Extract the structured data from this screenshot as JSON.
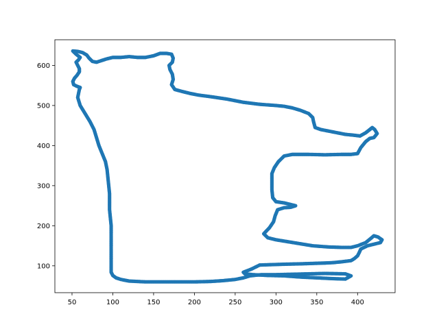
{
  "chart_data": {
    "type": "scatter",
    "title": "",
    "xlabel": "",
    "ylabel": "",
    "xlim": [
      29,
      446
    ],
    "ylim": [
      33,
      664
    ],
    "xticks": [
      50,
      100,
      150,
      200,
      250,
      300,
      350,
      400
    ],
    "yticks": [
      100,
      200,
      300,
      400,
      500,
      600
    ],
    "grid": false,
    "legend": "none",
    "color": "#1f77b4",
    "series": [
      {
        "points": [
          [
            51,
            636
          ],
          [
            57,
            635
          ],
          [
            63,
            632
          ],
          [
            68,
            626
          ],
          [
            71,
            618
          ],
          [
            75,
            610
          ],
          [
            80,
            608
          ],
          [
            86,
            612
          ],
          [
            92,
            616
          ],
          [
            100,
            620
          ],
          [
            110,
            620
          ],
          [
            120,
            622
          ],
          [
            130,
            620
          ],
          [
            140,
            620
          ],
          [
            150,
            624
          ],
          [
            158,
            630
          ],
          [
            166,
            630
          ],
          [
            172,
            628
          ],
          [
            174,
            618
          ],
          [
            173,
            608
          ],
          [
            169,
            600
          ],
          [
            170,
            590
          ],
          [
            173,
            578
          ],
          [
            174,
            565
          ],
          [
            172,
            552
          ],
          [
            176,
            540
          ],
          [
            185,
            535
          ],
          [
            195,
            530
          ],
          [
            205,
            526
          ],
          [
            220,
            522
          ],
          [
            240,
            516
          ],
          [
            260,
            508
          ],
          [
            280,
            503
          ],
          [
            300,
            500
          ],
          [
            310,
            498
          ],
          [
            320,
            494
          ],
          [
            330,
            488
          ],
          [
            340,
            480
          ],
          [
            345,
            470
          ],
          [
            346,
            460
          ],
          [
            348,
            445
          ],
          [
            355,
            440
          ],
          [
            370,
            434
          ],
          [
            385,
            428
          ],
          [
            395,
            426
          ],
          [
            403,
            424
          ],
          [
            410,
            432
          ],
          [
            415,
            440
          ],
          [
            418,
            445
          ],
          [
            421,
            440
          ],
          [
            424,
            430
          ],
          [
            420,
            420
          ],
          [
            415,
            418
          ],
          [
            410,
            410
          ],
          [
            404,
            395
          ],
          [
            400,
            380
          ],
          [
            392,
            378
          ],
          [
            380,
            378
          ],
          [
            360,
            377
          ],
          [
            340,
            378
          ],
          [
            320,
            378
          ],
          [
            310,
            374
          ],
          [
            303,
            360
          ],
          [
            298,
            345
          ],
          [
            295,
            330
          ],
          [
            295,
            310
          ],
          [
            295,
            290
          ],
          [
            296,
            270
          ],
          [
            300,
            260
          ],
          [
            310,
            257
          ],
          [
            320,
            252
          ],
          [
            324,
            250
          ],
          [
            318,
            246
          ],
          [
            310,
            245
          ],
          [
            302,
            240
          ],
          [
            299,
            225
          ],
          [
            297,
            210
          ],
          [
            292,
            195
          ],
          [
            285,
            180
          ],
          [
            290,
            170
          ],
          [
            300,
            165
          ],
          [
            315,
            160
          ],
          [
            330,
            155
          ],
          [
            345,
            150
          ],
          [
            365,
            147
          ],
          [
            380,
            146
          ],
          [
            392,
            146
          ],
          [
            400,
            150
          ],
          [
            410,
            158
          ],
          [
            416,
            168
          ],
          [
            420,
            175
          ],
          [
            425,
            172
          ],
          [
            430,
            165
          ],
          [
            428,
            158
          ],
          [
            422,
            155
          ],
          [
            412,
            150
          ],
          [
            404,
            142
          ],
          [
            402,
            133
          ],
          [
            400,
            125
          ],
          [
            396,
            118
          ],
          [
            392,
            113
          ],
          [
            380,
            110
          ],
          [
            370,
            108
          ],
          [
            360,
            107
          ],
          [
            345,
            106
          ],
          [
            330,
            105
          ],
          [
            310,
            104
          ],
          [
            295,
            103
          ],
          [
            280,
            102
          ],
          [
            270,
            92
          ],
          [
            260,
            84
          ],
          [
            262,
            80
          ],
          [
            272,
            78
          ],
          [
            290,
            76
          ],
          [
            310,
            75
          ],
          [
            330,
            72
          ],
          [
            350,
            70
          ],
          [
            370,
            68
          ],
          [
            385,
            67
          ],
          [
            392,
            75
          ],
          [
            385,
            80
          ],
          [
            360,
            81
          ],
          [
            340,
            80
          ],
          [
            320,
            79
          ],
          [
            300,
            78
          ],
          [
            282,
            78
          ],
          [
            268,
            75
          ],
          [
            260,
            70
          ],
          [
            250,
            66
          ],
          [
            235,
            63
          ],
          [
            220,
            61
          ],
          [
            200,
            60
          ],
          [
            180,
            60
          ],
          [
            160,
            60
          ],
          [
            140,
            60
          ],
          [
            120,
            62
          ],
          [
            110,
            66
          ],
          [
            104,
            70
          ],
          [
            100,
            76
          ],
          [
            98,
            84
          ],
          [
            98,
            100
          ],
          [
            98,
            120
          ],
          [
            98,
            140
          ],
          [
            98,
            160
          ],
          [
            98,
            180
          ],
          [
            98,
            200
          ],
          [
            97,
            220
          ],
          [
            96,
            240
          ],
          [
            96,
            260
          ],
          [
            96,
            280
          ],
          [
            95,
            300
          ],
          [
            94,
            320
          ],
          [
            93,
            340
          ],
          [
            91,
            360
          ],
          [
            87,
            380
          ],
          [
            83,
            400
          ],
          [
            80,
            420
          ],
          [
            77,
            440
          ],
          [
            72,
            460
          ],
          [
            66,
            480
          ],
          [
            60,
            500
          ],
          [
            57,
            520
          ],
          [
            58,
            530
          ],
          [
            59,
            540
          ],
          [
            60,
            545
          ],
          [
            56,
            548
          ],
          [
            52,
            552
          ],
          [
            51,
            560
          ],
          [
            53,
            568
          ],
          [
            56,
            575
          ],
          [
            59,
            584
          ],
          [
            59,
            592
          ],
          [
            57,
            600
          ],
          [
            55,
            608
          ],
          [
            58,
            614
          ],
          [
            60,
            620
          ],
          [
            55,
            628
          ],
          [
            51,
            636
          ]
        ]
      }
    ]
  }
}
